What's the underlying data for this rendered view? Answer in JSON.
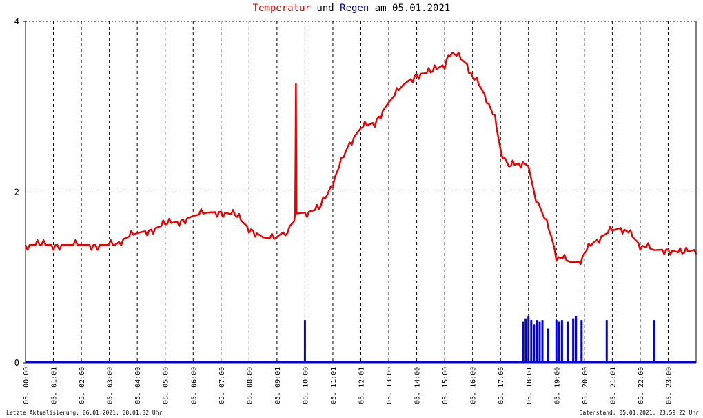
{
  "title": {
    "temp_word": "Temperatur",
    "and_word": "und",
    "rain_word": "Regen",
    "date_part": "am 05.01.2021"
  },
  "footer": {
    "left": "Letzte Aktualisierung: 06.01.2021, 00:01:32 Uhr",
    "right": "Datenstand: 05.01.2021, 23:59:22 Uhr"
  },
  "colors": {
    "temperature": "#ee0000",
    "rain": "#0000ee",
    "grid": "#000000",
    "background": "#ffffff"
  },
  "chart_data": {
    "type": "line",
    "title": "Temperatur und Regen am 05.01.2021",
    "xlabel": "",
    "ylabel": "",
    "x_unit": "hours",
    "xlim": [
      0,
      24
    ],
    "ylim": [
      0,
      4
    ],
    "y_ticks": [
      0,
      2,
      4
    ],
    "x_tick_labels": [
      {
        "x": 1,
        "label": "05. 01:01"
      },
      {
        "x": 2,
        "label": "05. 02:00"
      },
      {
        "x": 3,
        "label": "05. 03:00"
      },
      {
        "x": 4,
        "label": "05. 04:00"
      },
      {
        "x": 5,
        "label": "05. 05:00"
      },
      {
        "x": 6,
        "label": "05. 06:00"
      },
      {
        "x": 7,
        "label": "05. 07:00"
      },
      {
        "x": 8,
        "label": "05. 08:00"
      },
      {
        "x": 9,
        "label": "05. 09:01"
      },
      {
        "x": 10,
        "label": "05. 10:00"
      },
      {
        "x": 11,
        "label": "05. 11:01"
      },
      {
        "x": 12,
        "label": "05. 12:01"
      },
      {
        "x": 13,
        "label": "05. 13:00"
      },
      {
        "x": 14,
        "label": "05. 14:00"
      },
      {
        "x": 15,
        "label": "05. 15:00"
      },
      {
        "x": 16,
        "label": "05. 16:00"
      },
      {
        "x": 17,
        "label": "05. 17:00"
      },
      {
        "x": 18,
        "label": "05. 18:01"
      },
      {
        "x": 19,
        "label": "05. 19:00"
      },
      {
        "x": 20,
        "label": "05. 20:00"
      },
      {
        "x": 21,
        "label": "05. 21:01"
      },
      {
        "x": 22,
        "label": "05. 22:00"
      },
      {
        "x": 23,
        "label": "05. 23:00"
      }
    ],
    "first_tick_label": "05. 00:00",
    "grid": true,
    "grid_style": "dashed",
    "series": [
      {
        "key": "temperature",
        "color": "#ee0000",
        "style": "line",
        "x": [
          0,
          0.5,
          1,
          1.5,
          2,
          2.5,
          2.9,
          3.2,
          3.5,
          4,
          4.5,
          5,
          5.5,
          6,
          6.5,
          7,
          7.5,
          8,
          8.5,
          8.9,
          9.3,
          9.6,
          9.65,
          9.68,
          9.7,
          10,
          10.5,
          10.8,
          11,
          11.3,
          11.6,
          12,
          12.5,
          13,
          13.5,
          14,
          14.5,
          15,
          15.2,
          15.5,
          15.8,
          16,
          16.3,
          16.5,
          16.8,
          17,
          17.3,
          17.5,
          17.8,
          18,
          18.2,
          18.5,
          18.8,
          19,
          19.5,
          19.8,
          20,
          20.3,
          20.6,
          21,
          21.3,
          21.5,
          21.8,
          22,
          22.5,
          23,
          23.5,
          24
        ],
        "y": [
          1.38,
          1.38,
          1.38,
          1.38,
          1.38,
          1.38,
          1.38,
          1.38,
          1.45,
          1.52,
          1.56,
          1.62,
          1.66,
          1.72,
          1.76,
          1.77,
          1.73,
          1.58,
          1.47,
          1.45,
          1.55,
          1.65,
          1.7,
          3.27,
          1.75,
          1.76,
          1.8,
          1.97,
          2.12,
          2.35,
          2.58,
          2.75,
          2.82,
          3.05,
          3.25,
          3.38,
          3.4,
          3.5,
          3.65,
          3.58,
          3.5,
          3.35,
          3.22,
          3.1,
          2.85,
          2.5,
          2.3,
          2.32,
          2.35,
          2.3,
          2.0,
          1.75,
          1.5,
          1.25,
          1.18,
          1.18,
          1.28,
          1.4,
          1.48,
          1.55,
          1.58,
          1.55,
          1.45,
          1.38,
          1.32,
          1.33,
          1.28,
          1.33
        ]
      },
      {
        "key": "rain",
        "color": "#0000ee",
        "style": "bar",
        "x": [
          10.0,
          17.8,
          17.9,
          18.0,
          18.1,
          18.2,
          18.3,
          18.4,
          18.5,
          18.7,
          19.0,
          19.1,
          19.2,
          19.4,
          19.6,
          19.7,
          19.9,
          20.8,
          22.5
        ],
        "y": [
          0.5,
          0.48,
          0.52,
          0.55,
          0.5,
          0.45,
          0.5,
          0.48,
          0.5,
          0.4,
          0.5,
          0.48,
          0.5,
          0.48,
          0.52,
          0.55,
          0.5,
          0.5,
          0.5
        ]
      }
    ]
  }
}
